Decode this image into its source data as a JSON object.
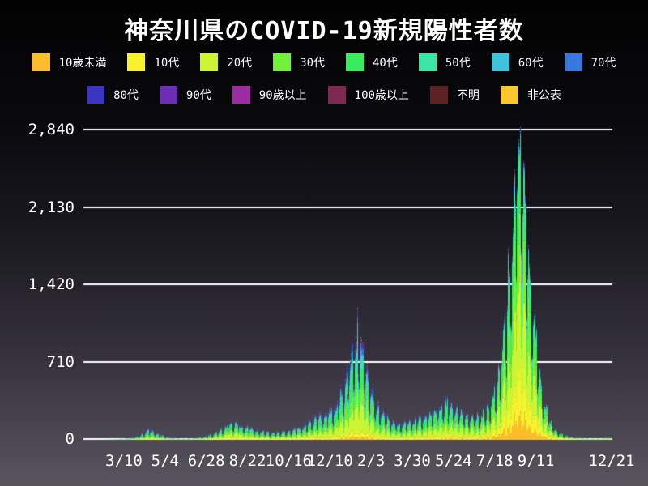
{
  "title": "神奈川県のCOVID-19新規陽性者数",
  "colors": {
    "background_top": "#020202",
    "background_bottom": "#58555f",
    "grid": "#ffffff",
    "text": "#ffffff"
  },
  "legend": {
    "rows": [
      [
        {
          "id": "under-10",
          "label": "10歳未満",
          "color": "#fbbd2b"
        },
        {
          "id": "10s",
          "label": "10代",
          "color": "#f8f22e"
        },
        {
          "id": "20s",
          "label": "20代",
          "color": "#cdf434"
        },
        {
          "id": "30s",
          "label": "30代",
          "color": "#71f13c"
        },
        {
          "id": "40s",
          "label": "40代",
          "color": "#3beb5e"
        },
        {
          "id": "50s",
          "label": "50代",
          "color": "#3be5a5"
        },
        {
          "id": "60s",
          "label": "60代",
          "color": "#3fc2dc"
        },
        {
          "id": "70s",
          "label": "70代",
          "color": "#3a77dc"
        }
      ],
      [
        {
          "id": "80s",
          "label": "80代",
          "color": "#3b35c0"
        },
        {
          "id": "90s",
          "label": "90代",
          "color": "#6c2eb2"
        },
        {
          "id": "over-90",
          "label": "90歳以上",
          "color": "#9e2ca1"
        },
        {
          "id": "over-100",
          "label": "100歳以上",
          "color": "#7d2a52"
        },
        {
          "id": "unknown",
          "label": "不明",
          "color": "#5e2125"
        },
        {
          "id": "undisclosed",
          "label": "非公表",
          "color": "#fbc72f"
        }
      ]
    ]
  },
  "chart_data": {
    "type": "area",
    "subtype": "stacked-daily-bars",
    "title": "神奈川県のCOVID-19新規陽性者数",
    "xlabel": "",
    "ylabel": "",
    "ylim": [
      0,
      2840
    ],
    "y_ticks": [
      "0",
      "710",
      "1,420",
      "2,130",
      "2,840"
    ],
    "y_tick_values": [
      0,
      710,
      1420,
      2130,
      2840
    ],
    "grid": "horizontal-white-lines",
    "legend_position": "top-two-rows",
    "x_start": "2020-01-16",
    "x_end": "2021-12-21",
    "x_ticks": [
      {
        "label": "3/10",
        "date": "2020-03-10"
      },
      {
        "label": "5/4",
        "date": "2020-05-04"
      },
      {
        "label": "6/28",
        "date": "2020-06-28"
      },
      {
        "label": "8/22",
        "date": "2020-08-22"
      },
      {
        "label": "10/16",
        "date": "2020-10-16"
      },
      {
        "label": "12/10",
        "date": "2020-12-10"
      },
      {
        "label": "2/3",
        "date": "2021-02-03"
      },
      {
        "label": "3/30",
        "date": "2021-03-30"
      },
      {
        "label": "5/24",
        "date": "2021-05-24"
      },
      {
        "label": "7/18",
        "date": "2021-07-18"
      },
      {
        "label": "9/11",
        "date": "2021-09-11"
      },
      {
        "label": "12/21",
        "date": "2021-12-21"
      }
    ],
    "series_names": [
      "10歳未満",
      "10代",
      "20代",
      "30代",
      "40代",
      "50代",
      "60代",
      "70代",
      "80代",
      "90代",
      "90歳以上",
      "100歳以上",
      "不明",
      "非公表"
    ],
    "series_colors": [
      "#fbbd2b",
      "#f8f22e",
      "#cdf434",
      "#71f13c",
      "#3beb5e",
      "#3be5a5",
      "#3fc2dc",
      "#3a77dc",
      "#3b35c0",
      "#6c2eb2",
      "#9e2ca1",
      "#7d2a52",
      "#5e2125",
      "#fbc72f"
    ],
    "total_keyframes": [
      [
        "2020-01-16",
        0
      ],
      [
        "2020-02-10",
        1
      ],
      [
        "2020-03-01",
        4
      ],
      [
        "2020-03-20",
        15
      ],
      [
        "2020-04-01",
        40
      ],
      [
        "2020-04-11",
        95
      ],
      [
        "2020-04-22",
        60
      ],
      [
        "2020-05-10",
        15
      ],
      [
        "2020-05-25",
        8
      ],
      [
        "2020-06-10",
        12
      ],
      [
        "2020-06-25",
        28
      ],
      [
        "2020-07-10",
        60
      ],
      [
        "2020-07-24",
        115
      ],
      [
        "2020-08-05",
        150
      ],
      [
        "2020-08-20",
        110
      ],
      [
        "2020-09-05",
        80
      ],
      [
        "2020-09-25",
        65
      ],
      [
        "2020-10-15",
        80
      ],
      [
        "2020-11-01",
        105
      ],
      [
        "2020-11-18",
        175
      ],
      [
        "2020-12-05",
        225
      ],
      [
        "2020-12-18",
        300
      ],
      [
        "2020-12-31",
        520
      ],
      [
        "2021-01-08",
        800
      ],
      [
        "2021-01-16",
        950
      ],
      [
        "2021-01-23",
        720
      ],
      [
        "2021-02-03",
        430
      ],
      [
        "2021-02-14",
        260
      ],
      [
        "2021-03-01",
        165
      ],
      [
        "2021-03-15",
        135
      ],
      [
        "2021-04-01",
        160
      ],
      [
        "2021-04-20",
        225
      ],
      [
        "2021-05-08",
        290
      ],
      [
        "2021-05-16",
        330
      ],
      [
        "2021-05-30",
        255
      ],
      [
        "2021-06-15",
        185
      ],
      [
        "2021-06-30",
        210
      ],
      [
        "2021-07-10",
        285
      ],
      [
        "2021-07-20",
        460
      ],
      [
        "2021-07-28",
        760
      ],
      [
        "2021-08-04",
        1300
      ],
      [
        "2021-08-11",
        1850
      ],
      [
        "2021-08-15",
        2300
      ],
      [
        "2021-08-20",
        2900
      ],
      [
        "2021-08-22",
        2600
      ],
      [
        "2021-08-26",
        2200
      ],
      [
        "2021-08-31",
        1750
      ],
      [
        "2021-09-06",
        1200
      ],
      [
        "2021-09-12",
        730
      ],
      [
        "2021-09-20",
        380
      ],
      [
        "2021-09-28",
        170
      ],
      [
        "2021-10-08",
        75
      ],
      [
        "2021-10-20",
        35
      ],
      [
        "2021-11-05",
        14
      ],
      [
        "2021-11-25",
        9
      ],
      [
        "2021-12-10",
        11
      ],
      [
        "2021-12-21",
        16
      ]
    ],
    "composition_keyframes": [
      {
        "date": "2020-01-16",
        "fractions": [
          0.01,
          0.02,
          0.16,
          0.15,
          0.17,
          0.17,
          0.12,
          0.09,
          0.06,
          0.02,
          0.005,
          0.001,
          0.014,
          0.01
        ]
      },
      {
        "date": "2020-08-01",
        "fractions": [
          0.03,
          0.05,
          0.3,
          0.2,
          0.15,
          0.11,
          0.06,
          0.04,
          0.03,
          0.01,
          0.003,
          0.001,
          0.008,
          0.008
        ]
      },
      {
        "date": "2021-01-15",
        "fractions": [
          0.03,
          0.06,
          0.25,
          0.17,
          0.15,
          0.13,
          0.08,
          0.055,
          0.04,
          0.015,
          0.005,
          0.001,
          0.007,
          0.007
        ]
      },
      {
        "date": "2021-05-15",
        "fractions": [
          0.04,
          0.08,
          0.26,
          0.18,
          0.16,
          0.13,
          0.06,
          0.04,
          0.025,
          0.01,
          0.003,
          0.001,
          0.005,
          0.006
        ]
      },
      {
        "date": "2021-08-20",
        "fractions": [
          0.08,
          0.13,
          0.29,
          0.2,
          0.16,
          0.09,
          0.025,
          0.012,
          0.006,
          0.002,
          0.001,
          0.001,
          0.002,
          0.001
        ]
      },
      {
        "date": "2021-12-21",
        "fractions": [
          0.07,
          0.12,
          0.28,
          0.19,
          0.15,
          0.1,
          0.04,
          0.02,
          0.01,
          0.004,
          0.001,
          0.001,
          0.004,
          0.01
        ]
      }
    ],
    "weekly_pattern": [
      0.62,
      0.55,
      0.85,
      1.02,
      1.1,
      1.15,
      1.1
    ]
  }
}
